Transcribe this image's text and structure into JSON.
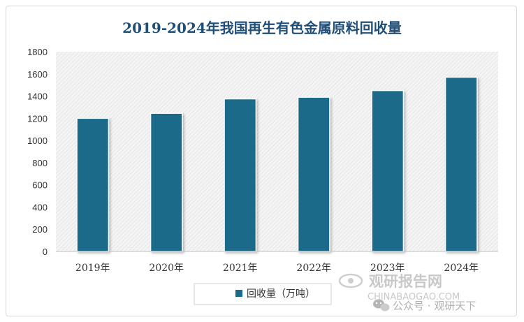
{
  "chart_data": {
    "type": "bar",
    "title": "2019-2024年我国再生有色金属原料回收量",
    "categories": [
      "2019年",
      "2020年",
      "2021年",
      "2022年",
      "2023年",
      "2024年"
    ],
    "series": [
      {
        "name": "回收量（万吨）",
        "values": [
          1200,
          1245,
          1375,
          1390,
          1450,
          1570
        ]
      }
    ],
    "ylim": [
      0,
      1800
    ],
    "yticks": [
      "0",
      "200",
      "400",
      "600",
      "800",
      "1000",
      "1200",
      "1400",
      "1600",
      "1800"
    ],
    "bar_color": "#1b6a8a",
    "grid": false,
    "legend_position": "bottom"
  },
  "watermark": {
    "brand": "观研报告网",
    "url": "CHINABAOGAO.COM",
    "wechat": "公众号 · 观研天下"
  }
}
